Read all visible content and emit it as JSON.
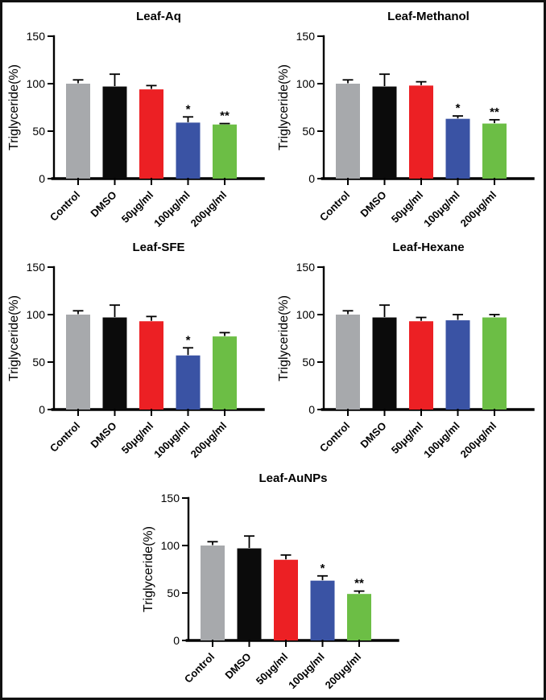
{
  "figure": {
    "ylabel": "Triglyceride(%)",
    "categories": [
      "Control",
      "DMSO",
      "50μg/ml",
      "100μg/ml",
      "200μg/ml"
    ],
    "bar_colors": [
      "#a7a9ac",
      "#0b0b0b",
      "#ec2024",
      "#3a53a4",
      "#6cbe45"
    ],
    "ylim": [
      0,
      150
    ],
    "yticks": [
      0,
      50,
      100,
      150
    ],
    "significance_legend": {
      "single": "*",
      "double": "**"
    }
  },
  "chart_data": [
    {
      "type": "bar",
      "title": "Leaf-Aq",
      "ylabel": "Triglyceride(%)",
      "categories": [
        "Control",
        "DMSO",
        "50μg/ml",
        "100μg/ml",
        "200μg/ml"
      ],
      "values": [
        100,
        97,
        94,
        59,
        57
      ],
      "errors": [
        4,
        13,
        4,
        6,
        1
      ],
      "significance": [
        "",
        "",
        "",
        "*",
        "**"
      ],
      "colors": [
        "#a7a9ac",
        "#0b0b0b",
        "#ec2024",
        "#3a53a4",
        "#6cbe45"
      ],
      "ylim": [
        0,
        150
      ],
      "yticks": [
        0,
        50,
        100,
        150
      ],
      "grid": false
    },
    {
      "type": "bar",
      "title": "Leaf-Methanol",
      "ylabel": "Triglyceride(%)",
      "categories": [
        "Control",
        "DMSO",
        "50μg/ml",
        "100μg/ml",
        "200μg/ml"
      ],
      "values": [
        100,
        97,
        98,
        63,
        58
      ],
      "errors": [
        4,
        13,
        4,
        3,
        4
      ],
      "significance": [
        "",
        "",
        "",
        "*",
        "**"
      ],
      "colors": [
        "#a7a9ac",
        "#0b0b0b",
        "#ec2024",
        "#3a53a4",
        "#6cbe45"
      ],
      "ylim": [
        0,
        150
      ],
      "yticks": [
        0,
        50,
        100,
        150
      ],
      "grid": false
    },
    {
      "type": "bar",
      "title": "Leaf-SFE",
      "ylabel": "Triglyceride(%)",
      "categories": [
        "Control",
        "DMSO",
        "50μg/ml",
        "100μg/ml",
        "200μg/ml"
      ],
      "values": [
        100,
        97,
        93,
        57,
        77
      ],
      "errors": [
        4,
        13,
        5,
        8,
        4
      ],
      "significance": [
        "",
        "",
        "",
        "*",
        ""
      ],
      "colors": [
        "#a7a9ac",
        "#0b0b0b",
        "#ec2024",
        "#3a53a4",
        "#6cbe45"
      ],
      "ylim": [
        0,
        150
      ],
      "yticks": [
        0,
        50,
        100,
        150
      ],
      "grid": false
    },
    {
      "type": "bar",
      "title": "Leaf-Hexane",
      "ylabel": "Triglyceride(%)",
      "categories": [
        "Control",
        "DMSO",
        "50μg/ml",
        "100μg/ml",
        "200μg/ml"
      ],
      "values": [
        100,
        97,
        93,
        94,
        97
      ],
      "errors": [
        4,
        13,
        4,
        6,
        3
      ],
      "significance": [
        "",
        "",
        "",
        "",
        ""
      ],
      "colors": [
        "#a7a9ac",
        "#0b0b0b",
        "#ec2024",
        "#3a53a4",
        "#6cbe45"
      ],
      "ylim": [
        0,
        150
      ],
      "yticks": [
        0,
        50,
        100,
        150
      ],
      "grid": false
    },
    {
      "type": "bar",
      "title": "Leaf-AuNPs",
      "ylabel": "Triglyceride(%)",
      "categories": [
        "Control",
        "DMSO",
        "50μg/ml",
        "100μg/ml",
        "200μg/ml"
      ],
      "values": [
        100,
        97,
        85,
        63,
        49
      ],
      "errors": [
        4,
        13,
        5,
        5,
        3
      ],
      "significance": [
        "",
        "",
        "",
        "*",
        "**"
      ],
      "colors": [
        "#a7a9ac",
        "#0b0b0b",
        "#ec2024",
        "#3a53a4",
        "#6cbe45"
      ],
      "ylim": [
        0,
        150
      ],
      "yticks": [
        0,
        50,
        100,
        150
      ],
      "grid": false
    }
  ]
}
